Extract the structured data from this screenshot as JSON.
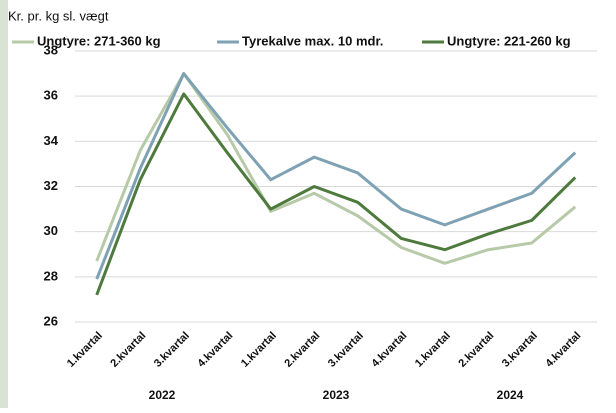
{
  "chart_data": {
    "type": "line",
    "ylabel": "Kr. pr. kg sl. vægt",
    "categories": [
      "1.kvartal",
      "2.kvartal",
      "3.kvartal",
      "4.kvartal",
      "1.kvartal",
      "2.kvartal",
      "3.kvartal",
      "4.kvartal",
      "1.kvartal",
      "2.kvartal",
      "3.kvartal",
      "4.kvartal"
    ],
    "x_groups": [
      "2022",
      "2023",
      "2024"
    ],
    "series": [
      {
        "name": "Ungtyre: 271-360 kg",
        "color": "#b7caa8",
        "values": [
          28.7,
          33.6,
          37.0,
          34.3,
          30.9,
          31.7,
          30.7,
          29.3,
          28.6,
          29.2,
          29.5,
          31.1
        ]
      },
      {
        "name": "Tyrekalve max. 10 mdr.",
        "color": "#7ea2b4",
        "values": [
          27.9,
          32.8,
          37.0,
          34.6,
          32.3,
          33.3,
          32.6,
          31.0,
          30.3,
          31.0,
          31.7,
          33.5
        ]
      },
      {
        "name": "Ungtyre: 221-260 kg",
        "color": "#4e7a3d",
        "values": [
          27.2,
          32.3,
          36.1,
          33.5,
          31.0,
          32.0,
          31.3,
          29.7,
          29.2,
          29.9,
          30.5,
          32.4
        ]
      }
    ],
    "ylim": [
      26,
      38
    ],
    "yticks": [
      26,
      28,
      30,
      32,
      34,
      36,
      38
    ],
    "grid": true,
    "legend": "top"
  }
}
